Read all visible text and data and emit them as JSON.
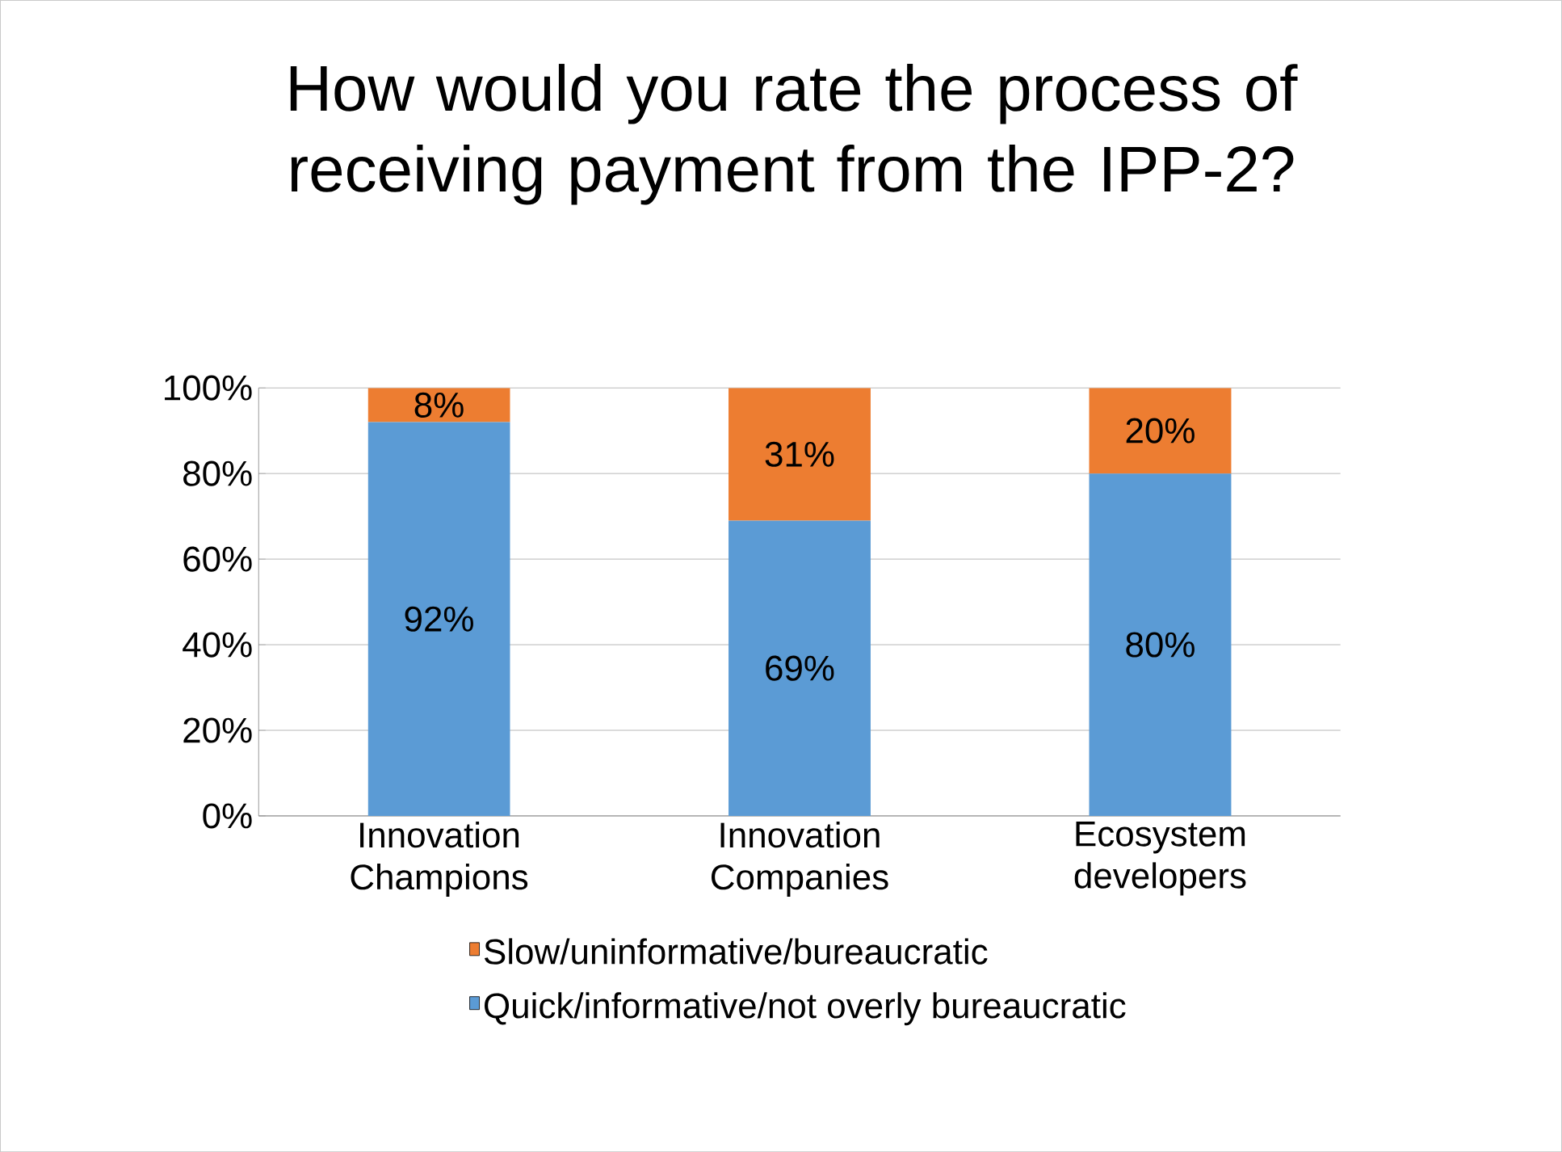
{
  "chart_data": {
    "type": "bar",
    "stacked": true,
    "title": "How would you rate the process of receiving payment from the IPP-2?",
    "categories": [
      "Innovation Champions",
      "Innovation Companies",
      "Ecosystem developers"
    ],
    "series": [
      {
        "name": "Quick/informative/not overly bureaucratic",
        "color": "#5b9bd5",
        "values": [
          92,
          69,
          80
        ],
        "value_labels": [
          "92%",
          "69%",
          "80%"
        ]
      },
      {
        "name": "Slow/uninformative/bureaucratic",
        "color": "#ed7d31",
        "values": [
          8,
          31,
          20
        ],
        "value_labels": [
          "8%",
          "31%",
          "20%"
        ]
      }
    ],
    "ylim": [
      0,
      100
    ],
    "yticks": [
      {
        "value": 0,
        "label": "0%"
      },
      {
        "value": 20,
        "label": "20%"
      },
      {
        "value": 40,
        "label": "40%"
      },
      {
        "value": 60,
        "label": "60%"
      },
      {
        "value": 80,
        "label": "80%"
      },
      {
        "value": 100,
        "label": "100%"
      }
    ],
    "grid": "y",
    "legend": "bottom"
  }
}
